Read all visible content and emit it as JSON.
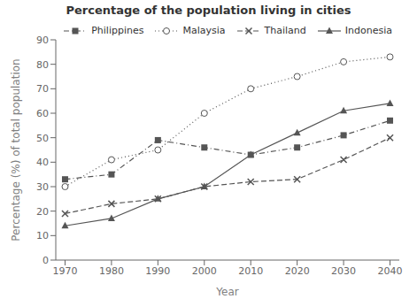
{
  "chart_data": {
    "type": "line",
    "title": "Percentage of the population living in cities",
    "x_label": "Year",
    "y_label": "Percentage (%) of total population",
    "x": [
      1970,
      1980,
      1990,
      2000,
      2010,
      2020,
      2030,
      2040
    ],
    "xlim": [
      1968,
      2042
    ],
    "xticks": [
      1970,
      1980,
      1990,
      2000,
      2010,
      2020,
      2030,
      2040
    ],
    "ylim": [
      0,
      90
    ],
    "yticks": [
      0,
      10,
      20,
      30,
      40,
      50,
      60,
      70,
      80,
      90
    ],
    "grid": false,
    "legend": "upper right",
    "series": [
      {
        "name": "Philippines",
        "color": "#555555",
        "marker": "square",
        "line_style": "dashdot",
        "values": [
          33,
          35,
          49,
          46,
          43,
          46,
          51,
          57
        ]
      },
      {
        "name": "Malaysia",
        "color": "#555555",
        "marker": "circle",
        "line_style": "dotted",
        "values": [
          30,
          41,
          45,
          60,
          70,
          75,
          81,
          83
        ]
      },
      {
        "name": "Thailand",
        "color": "#555555",
        "marker": "x",
        "line_style": "dashed",
        "values": [
          19,
          23,
          25,
          30,
          32,
          33,
          41,
          50
        ]
      },
      {
        "name": "Indonesia",
        "color": "#555555",
        "marker": "triangle",
        "line_style": "solid",
        "values": [
          14,
          17,
          25,
          30,
          43,
          52,
          61,
          64
        ]
      }
    ]
  }
}
